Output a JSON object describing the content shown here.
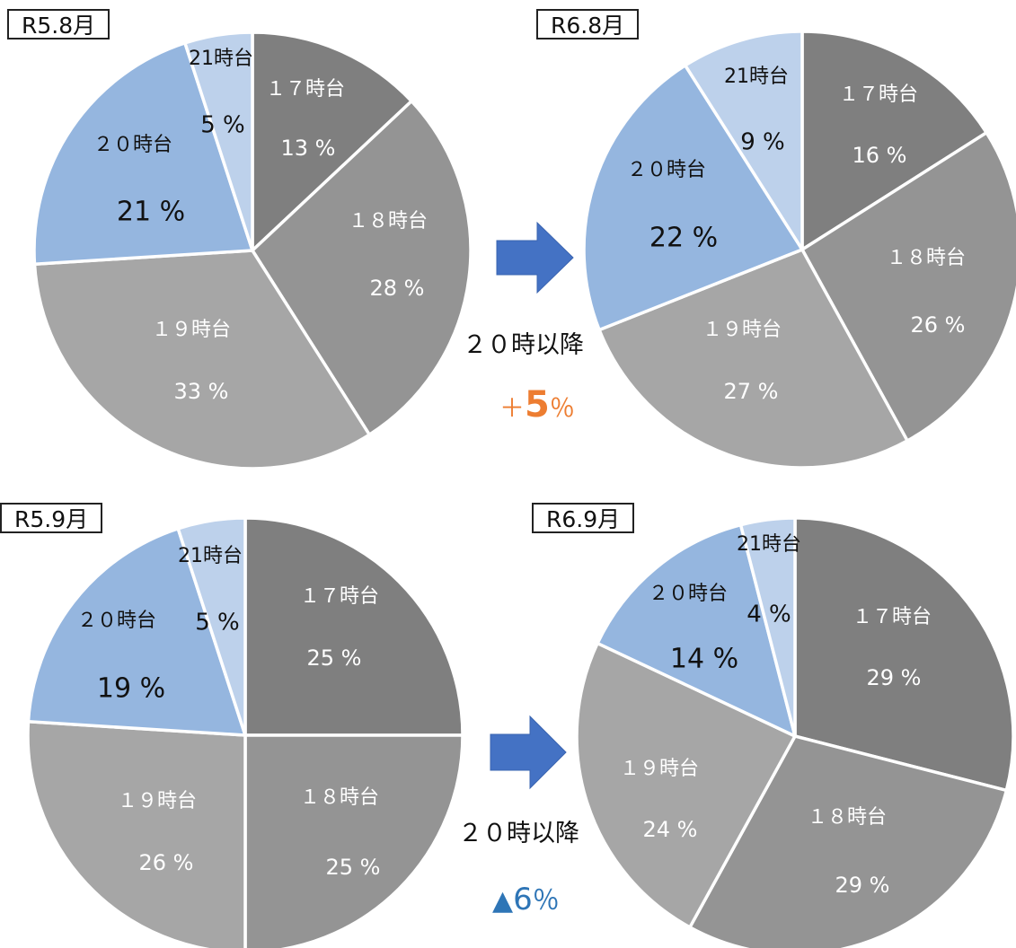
{
  "chart_data": [
    {
      "type": "pie",
      "title": "R5.8月",
      "slices": [
        {
          "label": "１７時台",
          "value": 13,
          "value_label": "13 %"
        },
        {
          "label": "１８時台",
          "value": 28,
          "value_label": "28 %"
        },
        {
          "label": "１９時台",
          "value": 33,
          "value_label": "33 %"
        },
        {
          "label": "２０時台",
          "value": 21,
          "value_label": "21 %"
        },
        {
          "label": "21時台",
          "value": 5,
          "value_label": "5 %"
        }
      ]
    },
    {
      "type": "pie",
      "title": "R6.8月",
      "slices": [
        {
          "label": "１７時台",
          "value": 16,
          "value_label": "16 %"
        },
        {
          "label": "１８時台",
          "value": 26,
          "value_label": "26 %"
        },
        {
          "label": "１９時台",
          "value": 27,
          "value_label": "27 %"
        },
        {
          "label": "２０時台",
          "value": 22,
          "value_label": "22 %"
        },
        {
          "label": "21時台",
          "value": 9,
          "value_label": "9 %"
        }
      ]
    },
    {
      "type": "pie",
      "title": "R5.9月",
      "slices": [
        {
          "label": "１７時台",
          "value": 25,
          "value_label": "25 %"
        },
        {
          "label": "１８時台",
          "value": 25,
          "value_label": "25 %"
        },
        {
          "label": "１９時台",
          "value": 26,
          "value_label": "26 %"
        },
        {
          "label": "２０時台",
          "value": 19,
          "value_label": "19 %"
        },
        {
          "label": "21時台",
          "value": 5,
          "value_label": "5 %"
        }
      ]
    },
    {
      "type": "pie",
      "title": "R6.9月",
      "slices": [
        {
          "label": "１７時台",
          "value": 29,
          "value_label": "29 %"
        },
        {
          "label": "１８時台",
          "value": 29,
          "value_label": "29 %"
        },
        {
          "label": "１９時台",
          "value": 24,
          "value_label": "24 %"
        },
        {
          "label": "２０時台",
          "value": 14,
          "value_label": "14 %"
        },
        {
          "label": "21時台",
          "value": 4,
          "value_label": "4 %"
        }
      ]
    }
  ],
  "colors": [
    "#7F7F7F",
    "#949494",
    "#A6A6A6",
    "#95B6DF",
    "#BDD1EB"
  ],
  "arrow_color": "#4472C4",
  "comparisons": [
    {
      "label": "２０時以降",
      "change_sign": "＋",
      "change_value": "5",
      "change_unit": "％",
      "color": "#ED7D31"
    },
    {
      "label": "２０時以降",
      "change_sign": "▲",
      "change_value": "6",
      "change_unit": "％",
      "color": "#2E75B6"
    }
  ]
}
